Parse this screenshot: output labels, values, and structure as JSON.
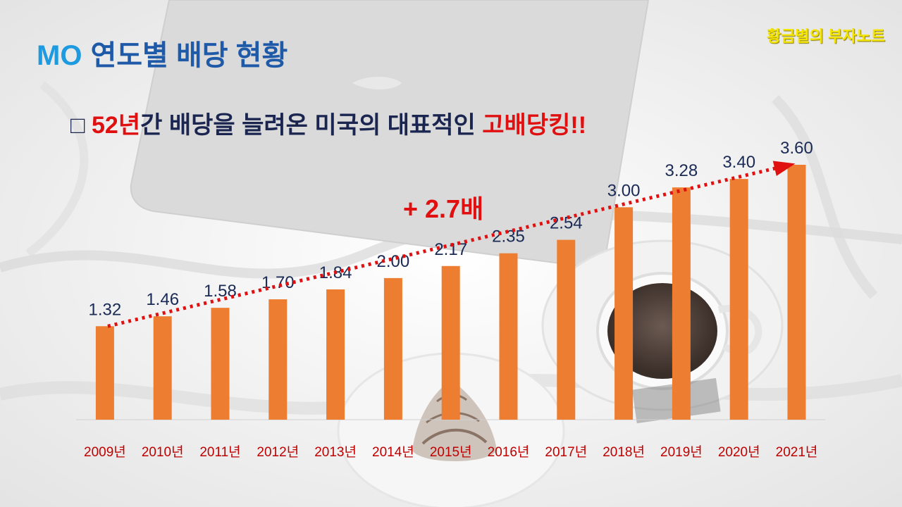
{
  "header": {
    "title_prefix": "MO",
    "title": "연도별 배당 현황",
    "brand": "황금별의 부자노트"
  },
  "subtitle": {
    "box": "□",
    "highlight_1": "52년",
    "middle": "간 배당을 늘려온 미국의 대표적인",
    "highlight_2": "고배당킹!!"
  },
  "annotation": {
    "growth_label": "+ 2.7배"
  },
  "colors": {
    "bar": "#ed7d31",
    "trend": "#e01010",
    "value_label": "#1a2a55",
    "category_label": "#c00000",
    "title": "#1f5aa8",
    "brand": "#f5e600"
  },
  "chart_data": {
    "type": "bar",
    "title": "",
    "xlabel": "",
    "ylabel": "",
    "categories": [
      "2009년",
      "2010년",
      "2011년",
      "2012년",
      "2013년",
      "2014년",
      "2015년",
      "2016년",
      "2017년",
      "2018년",
      "2019년",
      "2020년",
      "2021년"
    ],
    "values": [
      1.32,
      1.46,
      1.58,
      1.7,
      1.84,
      2.0,
      2.17,
      2.35,
      2.54,
      3.0,
      3.28,
      3.4,
      3.6
    ],
    "value_labels": [
      "1.32",
      "1.46",
      "1.58",
      "1.70",
      "1.84",
      "2.00",
      "2.17",
      "2.35",
      "2.54",
      "3.00",
      "3.28",
      "3.40",
      "3.60"
    ],
    "ylim": [
      0,
      3.6
    ],
    "grid": false,
    "legend": "none",
    "trendline": {
      "style": "dotted",
      "arrow": true,
      "from": 1.32,
      "to": 3.6
    }
  }
}
